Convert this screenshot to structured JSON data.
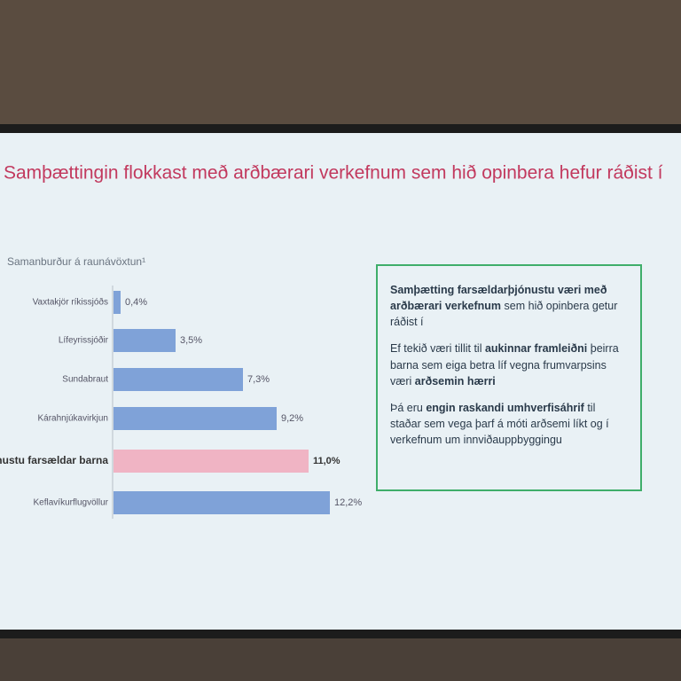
{
  "chart_data": {
    "type": "bar",
    "title": "Samþættingin flokkast með arðbærari verkefnum sem hið opinbera hefur ráðist í",
    "subtitle": "Samanburður á raunávöxtun¹",
    "categories": [
      "Vaxtakjör ríkissjóðs",
      "Lífeyrissjóðir",
      "Sundabraut",
      "Kárahnjúkavirkjun",
      "þjónustu farsældar barna",
      "Keflavíkurflugvöllur"
    ],
    "values": [
      0.4,
      3.5,
      7.3,
      9.2,
      11.0,
      12.2
    ],
    "value_labels": [
      "0,4%",
      "3,5%",
      "7,3%",
      "9,2%",
      "11,0%",
      "12,2%"
    ],
    "colors": [
      "#7fa2d8",
      "#7fa2d8",
      "#7fa2d8",
      "#7fa2d8",
      "#f0b4c4",
      "#7fa2d8"
    ],
    "highlight": [
      false,
      false,
      false,
      false,
      true,
      false
    ]
  },
  "box": {
    "paragraphs": [
      [
        {
          "text": "Samþætting farsældarþjónustu væri með arðbærari verkefnum",
          "bold": true
        },
        {
          "text": " sem hið opinbera getur ráðist í",
          "bold": false
        }
      ],
      [
        {
          "text": "Ef tekið væri tillit til ",
          "bold": false
        },
        {
          "text": "aukinnar framleiðni",
          "bold": true
        },
        {
          "text": " þeirra barna sem eiga betra líf vegna frumvarpsins væri ",
          "bold": false
        },
        {
          "text": "arðsemin hærri",
          "bold": true
        }
      ],
      [
        {
          "text": "Þá eru ",
          "bold": false
        },
        {
          "text": "engin raskandi umhverfisáhrif",
          "bold": true
        },
        {
          "text": " til staðar sem vega þarf á móti arðsemi líkt og í verkefnum um innviðauppbyggingu",
          "bold": false
        }
      ]
    ]
  }
}
